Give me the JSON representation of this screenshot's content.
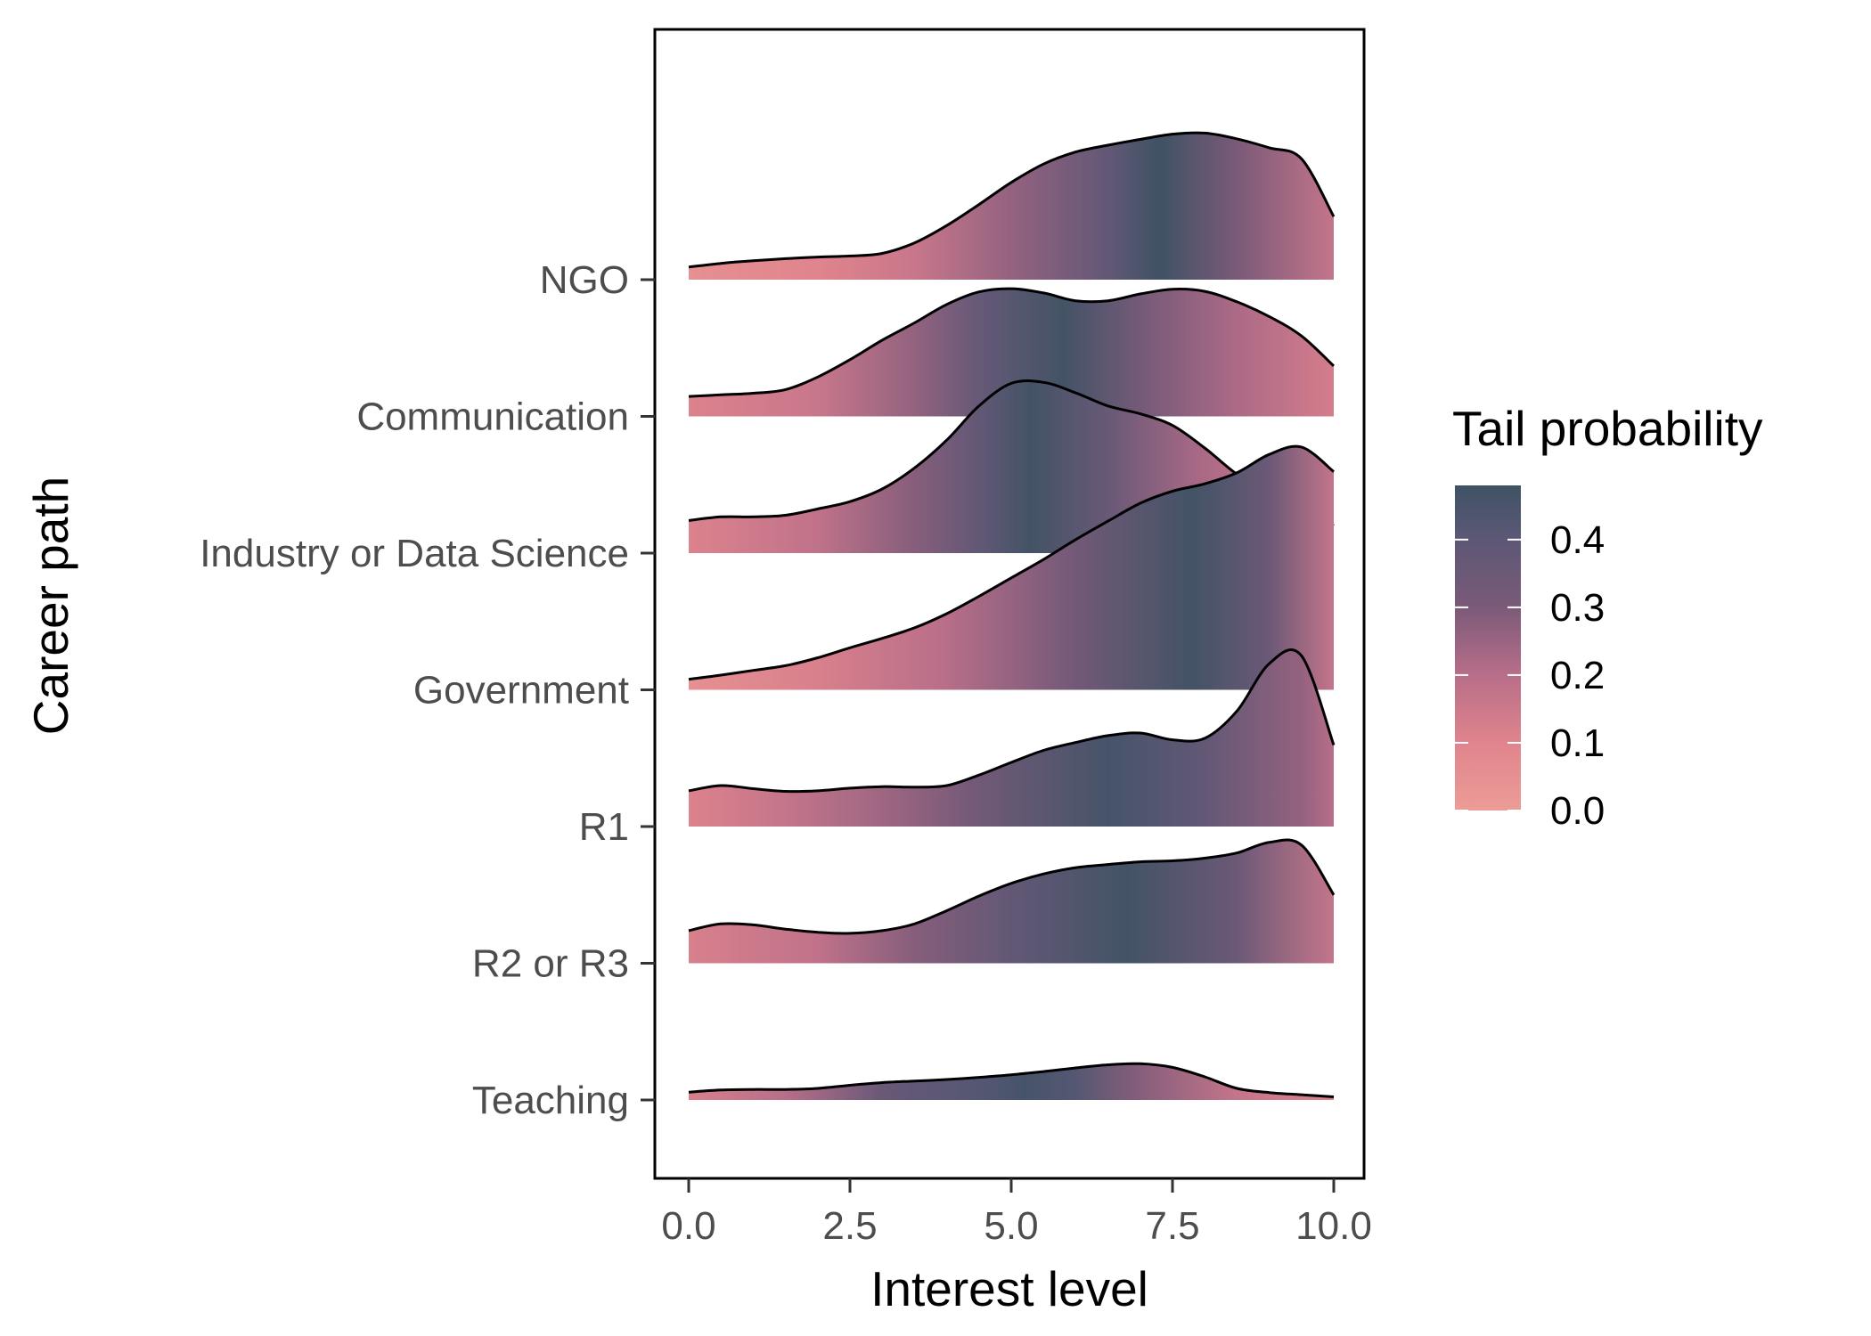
{
  "chart_data": {
    "type": "ridgeline",
    "xlabel": "Interest level",
    "ylabel": "Career path",
    "xlim": [
      -0.5,
      10.5
    ],
    "x_ticks": [
      0,
      2.5,
      5,
      7.5,
      10
    ],
    "x_tick_labels": [
      "0.0",
      "2.5",
      "5.0",
      "7.5",
      "10.0"
    ],
    "categories": [
      "Teaching",
      "R2 or R3",
      "R1",
      "Government",
      "Industry or Data Science",
      "Communication",
      "NGO"
    ],
    "x": [
      0,
      0.5,
      1,
      1.5,
      2,
      2.5,
      3,
      3.5,
      4,
      4.5,
      5,
      5.5,
      6,
      6.5,
      7,
      7.5,
      8,
      8.5,
      9,
      9.5,
      10
    ],
    "series": [
      {
        "name": "Teaching",
        "values": [
          0.15,
          0.19,
          0.2,
          0.2,
          0.22,
          0.28,
          0.33,
          0.36,
          0.39,
          0.43,
          0.48,
          0.54,
          0.61,
          0.67,
          0.69,
          0.62,
          0.44,
          0.22,
          0.14,
          0.1,
          0.06
        ],
        "gradient_stops": [
          [
            0,
            0.12
          ],
          [
            1.5,
            0.2
          ],
          [
            3,
            0.36
          ],
          [
            4.5,
            0.42
          ],
          [
            5.2,
            0.46
          ],
          [
            6,
            0.42
          ],
          [
            7,
            0.28
          ],
          [
            8.5,
            0.17
          ],
          [
            10,
            0.11
          ]
        ]
      },
      {
        "name": "R2 or R3",
        "values": [
          0.62,
          0.75,
          0.73,
          0.65,
          0.59,
          0.57,
          0.62,
          0.75,
          1.0,
          1.28,
          1.52,
          1.7,
          1.82,
          1.88,
          1.93,
          1.95,
          2.0,
          2.1,
          2.3,
          2.25,
          1.3
        ],
        "gradient_stops": [
          [
            0,
            0.12
          ],
          [
            2,
            0.18
          ],
          [
            3.5,
            0.28
          ],
          [
            5,
            0.38
          ],
          [
            6.8,
            0.47
          ],
          [
            8.5,
            0.35
          ],
          [
            10,
            0.17
          ]
        ]
      },
      {
        "name": "R1",
        "values": [
          0.68,
          0.78,
          0.72,
          0.67,
          0.68,
          0.73,
          0.76,
          0.75,
          0.78,
          0.98,
          1.22,
          1.45,
          1.6,
          1.73,
          1.78,
          1.65,
          1.68,
          2.2,
          3.1,
          3.25,
          1.55
        ],
        "gradient_stops": [
          [
            0,
            0.11
          ],
          [
            1.5,
            0.17
          ],
          [
            3,
            0.24
          ],
          [
            4.5,
            0.33
          ],
          [
            6.5,
            0.46
          ],
          [
            8,
            0.38
          ],
          [
            9.5,
            0.26
          ],
          [
            10,
            0.2
          ]
        ]
      },
      {
        "name": "Government",
        "values": [
          0.2,
          0.28,
          0.37,
          0.46,
          0.61,
          0.8,
          0.98,
          1.18,
          1.45,
          1.78,
          2.13,
          2.48,
          2.86,
          3.21,
          3.55,
          3.78,
          3.92,
          4.13,
          4.48,
          4.62,
          4.15
        ],
        "gradient_stops": [
          [
            0,
            0.05
          ],
          [
            2,
            0.12
          ],
          [
            4,
            0.2
          ],
          [
            6,
            0.33
          ],
          [
            7.8,
            0.47
          ],
          [
            9,
            0.35
          ],
          [
            10,
            0.17
          ]
        ]
      },
      {
        "name": "Industry or Data Science",
        "values": [
          0.62,
          0.69,
          0.69,
          0.72,
          0.84,
          0.98,
          1.22,
          1.62,
          2.15,
          2.8,
          3.23,
          3.25,
          3.05,
          2.8,
          2.65,
          2.43,
          2.0,
          1.5,
          1.15,
          0.9,
          0.52
        ],
        "gradient_stops": [
          [
            0,
            0.11
          ],
          [
            2,
            0.18
          ],
          [
            3.5,
            0.28
          ],
          [
            4.5,
            0.38
          ],
          [
            5.3,
            0.47
          ],
          [
            6.5,
            0.36
          ],
          [
            8,
            0.22
          ],
          [
            10,
            0.12
          ]
        ]
      },
      {
        "name": "Communication",
        "values": [
          0.38,
          0.41,
          0.44,
          0.51,
          0.75,
          1.08,
          1.45,
          1.78,
          2.13,
          2.37,
          2.43,
          2.35,
          2.2,
          2.2,
          2.33,
          2.42,
          2.38,
          2.18,
          1.9,
          1.53,
          0.96
        ],
        "gradient_stops": [
          [
            0,
            0.11
          ],
          [
            2,
            0.16
          ],
          [
            3.5,
            0.26
          ],
          [
            4.5,
            0.37
          ],
          [
            5.8,
            0.47
          ],
          [
            7,
            0.32
          ],
          [
            8.5,
            0.22
          ],
          [
            10,
            0.13
          ]
        ]
      },
      {
        "name": "NGO",
        "values": [
          0.24,
          0.31,
          0.36,
          0.4,
          0.43,
          0.45,
          0.5,
          0.7,
          1.03,
          1.43,
          1.85,
          2.2,
          2.43,
          2.56,
          2.67,
          2.77,
          2.79,
          2.68,
          2.51,
          2.3,
          1.2
        ],
        "gradient_stops": [
          [
            0,
            0.05
          ],
          [
            2,
            0.1
          ],
          [
            3.5,
            0.16
          ],
          [
            5,
            0.26
          ],
          [
            6.5,
            0.38
          ],
          [
            7.3,
            0.48
          ],
          [
            8.5,
            0.3
          ],
          [
            10,
            0.17
          ]
        ]
      }
    ],
    "fill": {
      "name": "Tail probability",
      "ticks": [
        0.0,
        0.1,
        0.2,
        0.3,
        0.4
      ],
      "tick_labels": [
        "0.0",
        "0.1",
        "0.2",
        "0.3",
        "0.4"
      ],
      "range": [
        0,
        0.48
      ],
      "color_stops": [
        {
          "value": 0.0,
          "color": "#ec9c96"
        },
        {
          "value": 0.1,
          "color": "#e0848d"
        },
        {
          "value": 0.2,
          "color": "#b86e89"
        },
        {
          "value": 0.3,
          "color": "#7a5a78"
        },
        {
          "value": 0.4,
          "color": "#5c5876"
        },
        {
          "value": 0.48,
          "color": "#3f5264"
        }
      ]
    },
    "grid": false,
    "legend_position": "right",
    "outline_color": "#000000"
  }
}
